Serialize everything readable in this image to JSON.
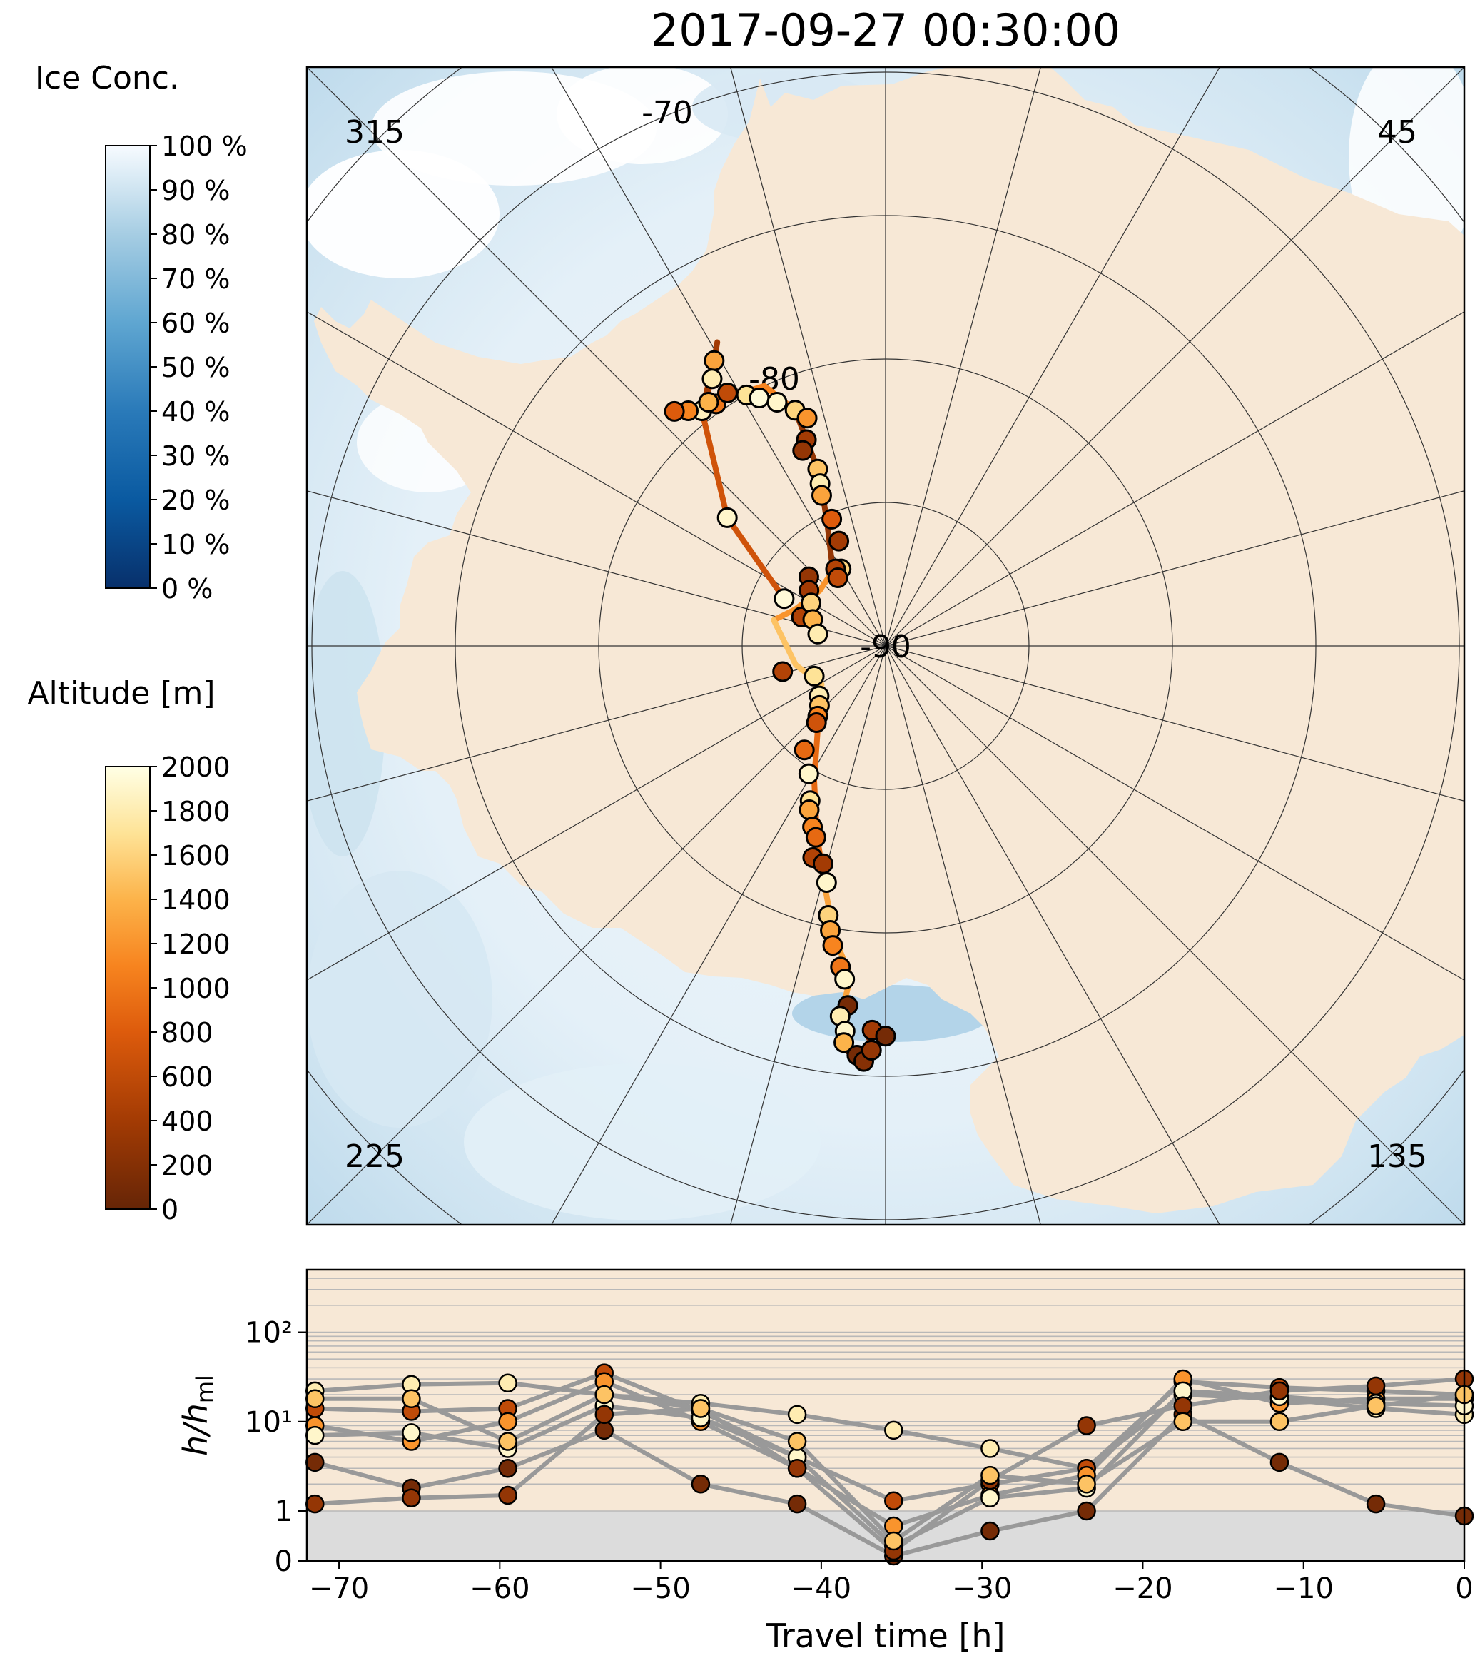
{
  "figure": {
    "title": "2017-09-27 00:30:00"
  },
  "colors": {
    "land": "#f7e8d6",
    "lower_panel_bg": "#f7e8d6",
    "below_ml_band": "#dcdcdc",
    "trajectory_grey": "#999999"
  },
  "colorbars": {
    "ice": {
      "title": "Ice Conc.",
      "tick_labels": [
        "0 %",
        "10 %",
        "20 %",
        "30 %",
        "40 %",
        "50 %",
        "60 %",
        "70 %",
        "80 %",
        "90 %",
        "100 %"
      ],
      "colormap": "Blues_r"
    },
    "altitude": {
      "title": "Altitude [m]",
      "tick_labels": [
        "0",
        "200",
        "400",
        "600",
        "800",
        "1000",
        "1200",
        "1400",
        "1600",
        "1800",
        "2000"
      ],
      "colormap": "YlOrBr_r"
    }
  },
  "map": {
    "labels": {
      "lat_70": "-70",
      "lat_80": "-80",
      "lat_90": "-90",
      "lon_315": "315",
      "lon_45": "45",
      "lon_225": "225",
      "lon_135": "135"
    }
  },
  "chart_data": [
    {
      "type": "scatter",
      "panel": "map",
      "title": "2017-09-27 00:30:00",
      "projection": "south polar stereographic",
      "grid": true,
      "rings_lat": [
        -70,
        -80,
        -90
      ],
      "meridian_labels": [
        "315",
        "45",
        "225",
        "135"
      ],
      "color_scale": {
        "name": "Altitude [m]",
        "range": [
          0,
          2000
        ]
      },
      "tracks": [
        {
          "color_value": 700,
          "points": [
            [
              -86.1,
              295
            ],
            [
              -82.9,
              309
            ],
            [
              -79.6,
              322
            ]
          ]
        },
        {
          "color_value": 1100,
          "points": [
            [
              -79.6,
              322
            ],
            [
              -79.8,
              329
            ],
            [
              -80.0,
              335
            ],
            [
              -81.2,
              339
            ]
          ]
        },
        {
          "color_value": 300,
          "points": [
            [
              -81.2,
              339
            ],
            [
              -83.6,
              339
            ],
            [
              -85.4,
              334
            ],
            [
              -86.8,
              325
            ]
          ]
        },
        {
          "color_value": 1200,
          "points": [
            [
              -86.8,
              325
            ],
            [
              -87.0,
              310
            ],
            [
              -86.6,
              292
            ],
            [
              -86.0,
              283
            ]
          ]
        },
        {
          "color_value": 1500,
          "points": [
            [
              -86.0,
              283
            ],
            [
              -86.8,
              258
            ],
            [
              -87.4,
              239
            ],
            [
              -86.5,
              222
            ]
          ]
        },
        {
          "color_value": 900,
          "points": [
            [
              -86.5,
              222
            ],
            [
              -84.7,
              208
            ],
            [
              -83.0,
              200
            ],
            [
              -81.3,
              194
            ]
          ]
        },
        {
          "color_value": 1300,
          "points": [
            [
              -81.3,
              194
            ],
            [
              -79.7,
              190
            ],
            [
              -78.4,
              186
            ],
            [
              -76.9,
              187
            ],
            [
              -76.3,
              186
            ]
          ]
        },
        {
          "color_value": 100,
          "points": [
            [
              -76.3,
              186
            ],
            [
              -75.9,
              186
            ],
            [
              -75.6,
              184
            ],
            [
              -76.1,
              182
            ],
            [
              -76.6,
              183
            ]
          ]
        },
        {
          "color_value": 400,
          "points": [
            [
              -79.6,
              322
            ],
            [
              -78.4,
              329
            ],
            [
              -77.9,
              331
            ],
            [
              -79.4,
              324
            ]
          ]
        }
      ],
      "points": [
        {
          "lat": -86.1,
          "lon": 295,
          "alt": 1950
        },
        {
          "lat": -82.9,
          "lon": 309,
          "alt": 1900
        },
        {
          "lat": -79.6,
          "lon": 322,
          "alt": 1850
        },
        {
          "lat": -79.7,
          "lon": 325,
          "alt": 1000
        },
        {
          "lat": -79.3,
          "lon": 320,
          "alt": 1100
        },
        {
          "lat": -79.0,
          "lon": 318,
          "alt": 800
        },
        {
          "lat": -78.4,
          "lon": 329,
          "alt": 1300
        },
        {
          "lat": -78.9,
          "lon": 327,
          "alt": 1800
        },
        {
          "lat": -79.5,
          "lon": 324,
          "alt": 1400
        },
        {
          "lat": -79.6,
          "lon": 328,
          "alt": 600
        },
        {
          "lat": -80.0,
          "lon": 331,
          "alt": 1700
        },
        {
          "lat": -80.3,
          "lon": 333,
          "alt": 1950
        },
        {
          "lat": -80.7,
          "lon": 336,
          "alt": 1900
        },
        {
          "lat": -81.2,
          "lon": 339,
          "alt": 1600
        },
        {
          "lat": -81.6,
          "lon": 341,
          "alt": 1200
        },
        {
          "lat": -82.3,
          "lon": 339,
          "alt": 400
        },
        {
          "lat": -82.6,
          "lon": 337,
          "alt": 300
        },
        {
          "lat": -83.4,
          "lon": 339,
          "alt": 1500
        },
        {
          "lat": -83.9,
          "lon": 338,
          "alt": 1800
        },
        {
          "lat": -84.3,
          "lon": 337,
          "alt": 1300
        },
        {
          "lat": -85.2,
          "lon": 337,
          "alt": 800
        },
        {
          "lat": -86.0,
          "lon": 336,
          "alt": 400
        },
        {
          "lat": -86.9,
          "lon": 330,
          "alt": 1600
        },
        {
          "lat": -86.8,
          "lon": 327,
          "alt": 500
        },
        {
          "lat": -87.1,
          "lon": 325,
          "alt": 600
        },
        {
          "lat": -86.4,
          "lon": 312,
          "alt": 300
        },
        {
          "lat": -86.7,
          "lon": 306,
          "alt": 400
        },
        {
          "lat": -86.9,
          "lon": 289,
          "alt": 500
        },
        {
          "lat": -87.0,
          "lon": 300,
          "alt": 1600
        },
        {
          "lat": -87.3,
          "lon": 290,
          "alt": 1400
        },
        {
          "lat": -87.6,
          "lon": 280,
          "alt": 1800
        },
        {
          "lat": -86.3,
          "lon": 256,
          "alt": 500
        },
        {
          "lat": -87.3,
          "lon": 247,
          "alt": 1700
        },
        {
          "lat": -87.1,
          "lon": 233,
          "alt": 1800
        },
        {
          "lat": -86.9,
          "lon": 228,
          "alt": 1500
        },
        {
          "lat": -86.6,
          "lon": 224,
          "alt": 1100
        },
        {
          "lat": -86.4,
          "lon": 222,
          "alt": 700
        },
        {
          "lat": -85.4,
          "lon": 218,
          "alt": 900
        },
        {
          "lat": -84.8,
          "lon": 211,
          "alt": 1900
        },
        {
          "lat": -84.0,
          "lon": 206,
          "alt": 1700
        },
        {
          "lat": -83.7,
          "lon": 205,
          "alt": 1300
        },
        {
          "lat": -83.2,
          "lon": 202,
          "alt": 1100
        },
        {
          "lat": -82.9,
          "lon": 200,
          "alt": 900
        },
        {
          "lat": -82.2,
          "lon": 199,
          "alt": 500
        },
        {
          "lat": -82.1,
          "lon": 196,
          "alt": 400
        },
        {
          "lat": -81.5,
          "lon": 194,
          "alt": 1900
        },
        {
          "lat": -80.4,
          "lon": 192,
          "alt": 1600
        },
        {
          "lat": -79.9,
          "lon": 191,
          "alt": 1300
        },
        {
          "lat": -79.4,
          "lon": 190,
          "alt": 1100
        },
        {
          "lat": -78.7,
          "lon": 188,
          "alt": 1000
        },
        {
          "lat": -78.3,
          "lon": 187,
          "alt": 1900
        },
        {
          "lat": -77.4,
          "lon": 186,
          "alt": 100
        },
        {
          "lat": -77.0,
          "lon": 187,
          "alt": 1800
        },
        {
          "lat": -76.5,
          "lon": 186,
          "alt": 1900
        },
        {
          "lat": -76.1,
          "lon": 186,
          "alt": 1400
        },
        {
          "lat": -75.7,
          "lon": 184,
          "alt": 100
        },
        {
          "lat": -75.5,
          "lon": 183,
          "alt": 200
        },
        {
          "lat": -75.9,
          "lon": 182,
          "alt": 300
        },
        {
          "lat": -76.6,
          "lon": 182,
          "alt": 400
        },
        {
          "lat": -76.4,
          "lon": 180,
          "alt": 100
        }
      ]
    },
    {
      "type": "line",
      "panel": "lower",
      "xlabel": "Travel time [h]",
      "ylabel": "h/h_ml",
      "xlim": [
        -72,
        0
      ],
      "ylim": [
        0,
        500
      ],
      "yscale": "log above 1, linear below 1",
      "x_ticks": [
        -70,
        -60,
        -50,
        -40,
        -30,
        -20,
        -10,
        0
      ],
      "y_tick_labels": [
        "0",
        "1",
        "10¹",
        "10²"
      ],
      "y_tick_values": [
        0,
        1,
        10,
        100
      ],
      "grid": "horizontal minor gridlines",
      "sample_times": [
        -71.5,
        -65.5,
        -59.5,
        -53.5,
        -47.5,
        -41.5,
        -35.5,
        -29.5,
        -23.5,
        -17.5,
        -11.5,
        -5.5,
        0
      ],
      "series": [
        {
          "values": [
            22,
            26,
            27,
            20,
            16,
            12,
            8,
            5,
            3,
            20,
            18,
            14,
            12
          ],
          "alt": 1800
        },
        {
          "values": [
            14,
            13,
            14,
            35,
            13,
            4,
            1.3,
            2,
            3,
            28,
            24,
            22,
            20
          ],
          "alt": 600
        },
        {
          "values": [
            9,
            6,
            10,
            28,
            10,
            3,
            0.7,
            1.5,
            2.5,
            30,
            16,
            18,
            18
          ],
          "alt": 1200
        },
        {
          "values": [
            7,
            7.5,
            5,
            15,
            11,
            4,
            0.3,
            1.4,
            1.8,
            22,
            19,
            16,
            15
          ],
          "alt": 1900
        },
        {
          "values": [
            3.5,
            1.8,
            3,
            8,
            2,
            1.2,
            0.1,
            0.6,
            1,
            12,
            3.5,
            1.2,
            0.9
          ],
          "alt": 100
        },
        {
          "values": [
            1.2,
            1.4,
            1.5,
            12,
            14,
            3,
            0.2,
            2.2,
            9,
            15,
            22,
            25,
            30
          ],
          "alt": 300
        },
        {
          "values": [
            18,
            18,
            6,
            20,
            14,
            6,
            0.4,
            2.5,
            2,
            10,
            10,
            15,
            20
          ],
          "alt": 1500
        }
      ]
    }
  ]
}
